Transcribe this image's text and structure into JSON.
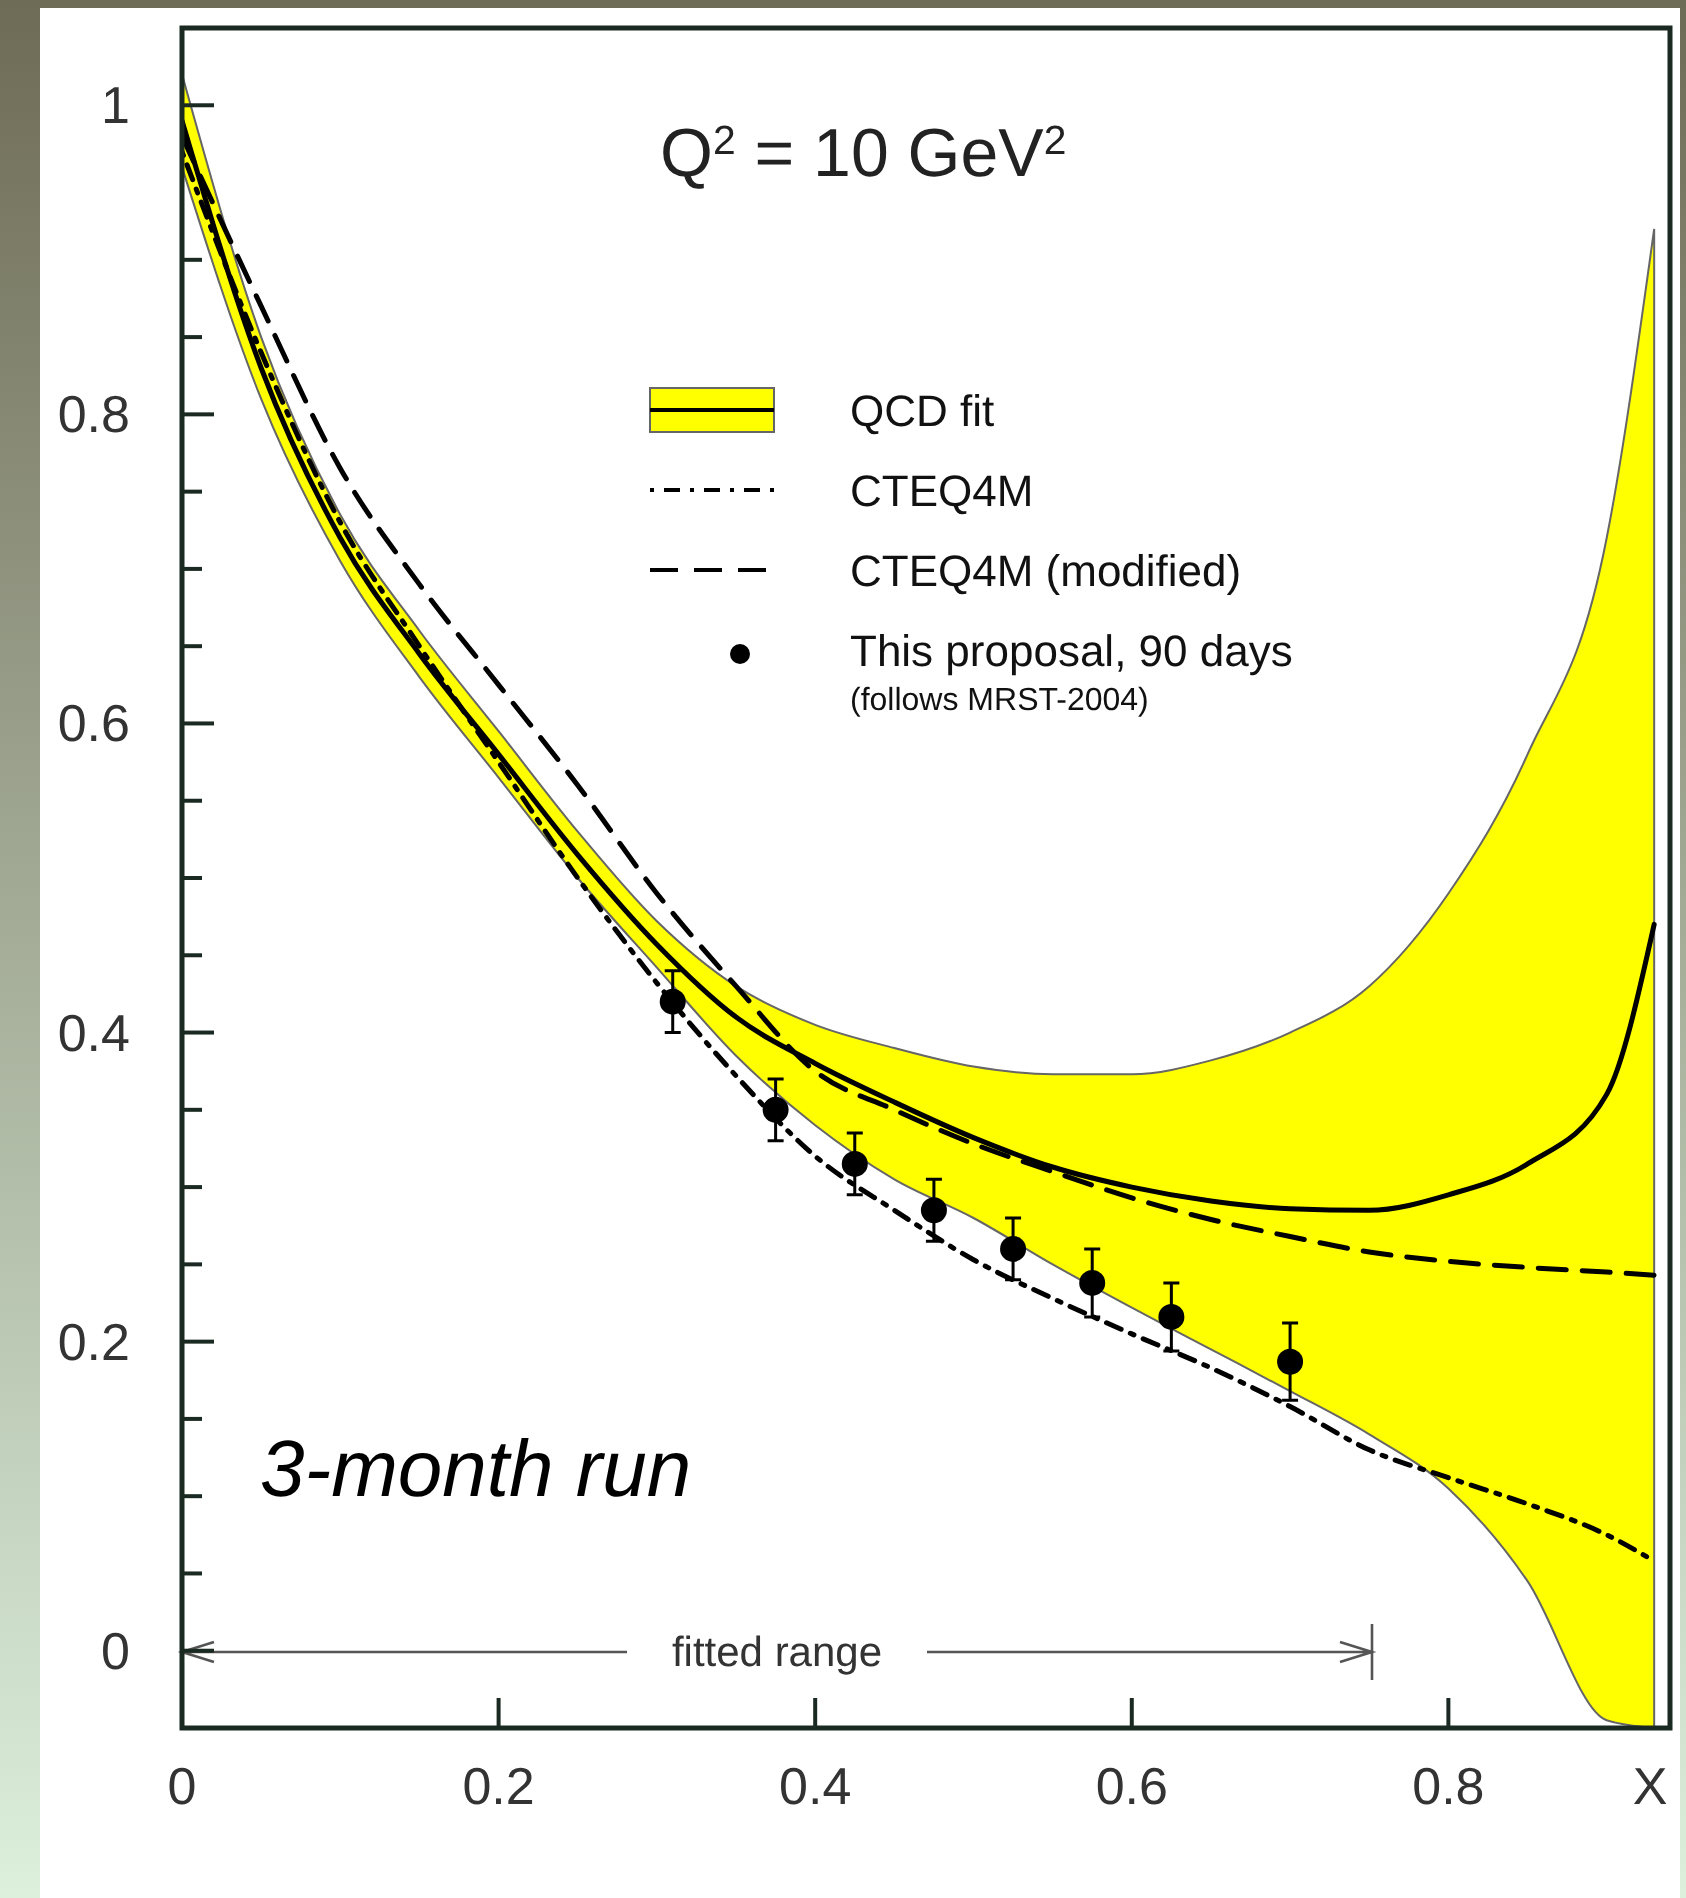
{
  "chart_data": {
    "type": "line",
    "xlabel": "X",
    "annotations": [
      "Q$^{2}$ = 10 GeV$^{2}$",
      "3-month run",
      "(follows MRST-2004)",
      "fitted range"
    ],
    "xlim": [
      0,
      0.94
    ],
    "ylim": [
      -0.05,
      1.05
    ],
    "xticks": [
      0,
      0.2,
      0.4,
      0.6,
      0.8
    ],
    "yticks": [
      0,
      {
        "value": 0.05,
        "label": null
      },
      {
        "value": 0.1,
        "label": null
      },
      {
        "value": 0.15,
        "label": null
      },
      0.2,
      {
        "value": 0.25,
        "label": null
      },
      {
        "value": 0.3,
        "label": null
      },
      {
        "value": 0.35,
        "label": null
      },
      0.4,
      {
        "value": 0.45,
        "label": null
      },
      {
        "value": 0.5,
        "label": null
      },
      {
        "value": 0.55,
        "label": null
      },
      0.6,
      {
        "value": 0.65,
        "label": null
      },
      {
        "value": 0.7,
        "label": null
      },
      {
        "value": 0.75,
        "label": null
      },
      0.8,
      {
        "value": 0.85,
        "label": null
      },
      {
        "value": 0.9,
        "label": null
      },
      1
    ],
    "legend": "top right",
    "x": [
      0,
      0.05,
      0.1,
      0.15,
      0.2,
      0.25,
      0.3,
      0.35,
      0.4,
      0.45,
      0.5,
      0.55,
      0.6,
      0.65,
      0.7,
      0.75,
      0.8,
      0.85,
      0.9,
      0.93
    ],
    "series": [
      {
        "name": "QCD fit",
        "color": "#000000",
        "line_style": "solid",
        "values": [
          0.99,
          0.83,
          0.72,
          0.645,
          0.58,
          0.515,
          0.457,
          0.41,
          0.38,
          0.355,
          0.332,
          0.313,
          0.3,
          0.291,
          0.286,
          0.285,
          0.295,
          0.315,
          0.36,
          0.47
        ],
        "lower": [
          0.96,
          0.81,
          0.705,
          0.63,
          0.565,
          0.5,
          0.442,
          0.385,
          0.34,
          0.305,
          0.28,
          0.25,
          0.222,
          0.195,
          0.168,
          0.14,
          0.105,
          0.045,
          -0.045,
          -0.05
        ],
        "upper": [
          1.02,
          0.85,
          0.735,
          0.66,
          0.595,
          0.53,
          0.472,
          0.43,
          0.405,
          0.39,
          0.378,
          0.373,
          0.373,
          0.382,
          0.4,
          0.43,
          0.49,
          0.58,
          0.72,
          0.92
        ]
      },
      {
        "name": "CTEQ4M",
        "color": "#000000",
        "line_style": "dotted",
        "values": [
          0.97,
          0.84,
          0.73,
          0.65,
          0.575,
          0.5,
          0.432,
          0.372,
          0.32,
          0.285,
          0.253,
          0.228,
          0.205,
          0.183,
          0.158,
          0.13,
          0.112,
          0.095,
          0.075,
          0.058
        ]
      },
      {
        "name": "CTEQ4M (modified)",
        "color": "#000000",
        "line_style": "dashed",
        "values": [
          0.98,
          0.87,
          0.765,
          0.69,
          0.625,
          0.56,
          0.49,
          0.43,
          0.375,
          0.35,
          0.328,
          0.31,
          0.293,
          0.279,
          0.268,
          0.258,
          0.252,
          0.248,
          0.245,
          0.243
        ]
      },
      {
        "name": "This proposal, 90 days",
        "type": "scatter",
        "marker": "circle",
        "color": "#000000",
        "x": [
          0.31,
          0.375,
          0.425,
          0.475,
          0.525,
          0.575,
          0.625,
          0.7
        ],
        "values": [
          0.42,
          0.35,
          0.315,
          0.285,
          0.26,
          0.238,
          0.216,
          0.187
        ],
        "errors": [
          0.02,
          0.02,
          0.02,
          0.02,
          0.02,
          0.022,
          0.022,
          0.025
        ]
      }
    ]
  }
}
